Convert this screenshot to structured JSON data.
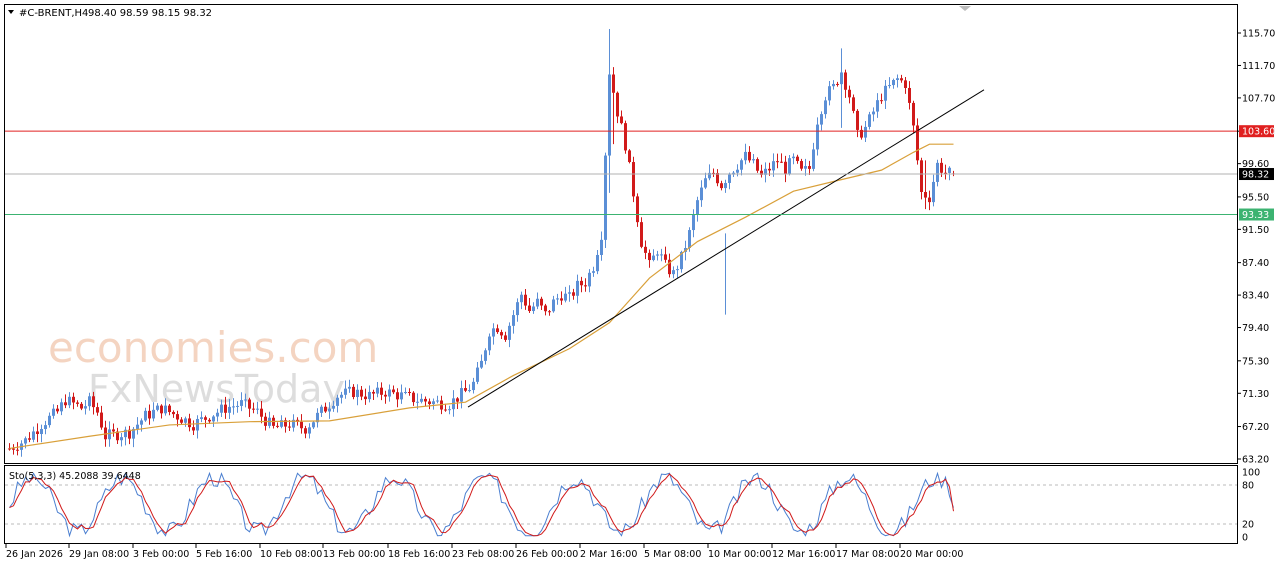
{
  "header": {
    "symbol": "#C-BRENT,H4",
    "ohlc": "98.40 98.59 98.15 98.32"
  },
  "watermark": {
    "line1": "economies.com",
    "line2": "FxNewsToday"
  },
  "colors": {
    "bull": "#5b8fd6",
    "bear": "#d11a1a",
    "ma": "#d9a03a",
    "resistance": "#e02020",
    "support": "#3cb371",
    "current": "#b0b0b0",
    "trendline": "#000000",
    "stoch_main": "#4b7fd0",
    "stoch_signal": "#d11a1a"
  },
  "chart_data": [
    {
      "type": "candlestick",
      "title": "#C-BRENT,H4",
      "timeframe": "H4",
      "current_ohlc": {
        "open": 98.4,
        "high": 98.59,
        "low": 98.15,
        "close": 98.32
      },
      "ylim": [
        63.2,
        117.5
      ],
      "y_ticks": [
        "115.70",
        "111.70",
        "107.70",
        "103.60",
        "99.60",
        "95.50",
        "91.50",
        "87.40",
        "83.40",
        "79.40",
        "75.30",
        "71.30",
        "67.20",
        "63.20"
      ],
      "x_ticks": [
        "26 Jan 2026",
        "29 Jan 08:00",
        "3 Feb 00:00",
        "5 Feb 16:00",
        "10 Feb 08:00",
        "13 Feb 00:00",
        "18 Feb 16:00",
        "23 Feb 08:00",
        "26 Feb 00:00",
        "2 Mar 16:00",
        "5 Mar 08:00",
        "10 Mar 00:00",
        "12 Mar 16:00",
        "17 Mar 08:00",
        "20 Mar 00:00"
      ],
      "price_path": [
        [
          0,
          64.5
        ],
        [
          4,
          65.5
        ],
        [
          8,
          67.5
        ],
        [
          12,
          69
        ],
        [
          14,
          70.5
        ],
        [
          16,
          70
        ],
        [
          18,
          69.5
        ],
        [
          20,
          70.2
        ],
        [
          22,
          69
        ],
        [
          24,
          66
        ],
        [
          26,
          66.2
        ],
        [
          30,
          66.5
        ],
        [
          32,
          67.5
        ],
        [
          34,
          68.5
        ],
        [
          38,
          69.5
        ],
        [
          42,
          68.5
        ],
        [
          46,
          67.5
        ],
        [
          50,
          68.5
        ],
        [
          54,
          69.5
        ],
        [
          58,
          70
        ],
        [
          62,
          69
        ],
        [
          66,
          67
        ],
        [
          70,
          67.5
        ],
        [
          74,
          67
        ],
        [
          78,
          69
        ],
        [
          82,
          71
        ],
        [
          86,
          71.5
        ],
        [
          90,
          71
        ],
        [
          94,
          71.5
        ],
        [
          98,
          71
        ],
        [
          102,
          70.5
        ],
        [
          106,
          70.2
        ],
        [
          110,
          70
        ],
        [
          112,
          70.8
        ],
        [
          114,
          71.5
        ],
        [
          116,
          72.5
        ],
        [
          118,
          75
        ],
        [
          120,
          79
        ],
        [
          122,
          79.5
        ],
        [
          124,
          78.5
        ],
        [
          126,
          81
        ],
        [
          128,
          83.5
        ],
        [
          130,
          81.5
        ],
        [
          132,
          82.5
        ],
        [
          134,
          81
        ],
        [
          136,
          82.5
        ],
        [
          138,
          83.5
        ],
        [
          140,
          83
        ],
        [
          142,
          84.5
        ],
        [
          144,
          85
        ],
        [
          146,
          87
        ],
        [
          148,
          91
        ],
        [
          150,
          111
        ],
        [
          152,
          106
        ],
        [
          154,
          102
        ],
        [
          156,
          96
        ],
        [
          158,
          90
        ],
        [
          160,
          87
        ],
        [
          162,
          89
        ],
        [
          164,
          87
        ],
        [
          166,
          86
        ],
        [
          168,
          88
        ],
        [
          170,
          91
        ],
        [
          172,
          95
        ],
        [
          174,
          97.5
        ],
        [
          176,
          98.5
        ],
        [
          178,
          97
        ],
        [
          180,
          98.5
        ],
        [
          182,
          99.5
        ],
        [
          184,
          100.5
        ],
        [
          186,
          99.5
        ],
        [
          188,
          98
        ],
        [
          190,
          99
        ],
        [
          192,
          100
        ],
        [
          194,
          99
        ],
        [
          196,
          100
        ],
        [
          198,
          98.5
        ],
        [
          200,
          99
        ],
        [
          202,
          105
        ],
        [
          204,
          108
        ],
        [
          206,
          109
        ],
        [
          208,
          111
        ],
        [
          210,
          108
        ],
        [
          212,
          103
        ],
        [
          214,
          104
        ],
        [
          216,
          106
        ],
        [
          218,
          108
        ],
        [
          220,
          109
        ],
        [
          222,
          110
        ],
        [
          224,
          109.5
        ],
        [
          226,
          104
        ],
        [
          228,
          96
        ],
        [
          230,
          95.5
        ],
        [
          232,
          99.5
        ],
        [
          234,
          98.5
        ],
        [
          236,
          98.3
        ]
      ],
      "price_levels": [
        {
          "label": "103.60",
          "value": 103.6,
          "color": "#e02020"
        },
        {
          "label": "98.32",
          "value": 98.32,
          "color": "#000000"
        },
        {
          "label": "93.33",
          "value": 93.33,
          "color": "#3cb371"
        }
      ],
      "moving_average": [
        [
          0,
          64.5
        ],
        [
          20,
          66
        ],
        [
          40,
          67.4
        ],
        [
          60,
          67.8
        ],
        [
          80,
          67.9
        ],
        [
          100,
          69.5
        ],
        [
          114,
          70.2
        ],
        [
          126,
          73.5
        ],
        [
          140,
          76.8
        ],
        [
          150,
          80
        ],
        [
          160,
          85.5
        ],
        [
          172,
          90
        ],
        [
          184,
          93
        ],
        [
          196,
          96.2
        ],
        [
          206,
          97.4
        ],
        [
          218,
          98.8
        ],
        [
          226,
          101
        ],
        [
          230,
          102
        ],
        [
          236,
          102
        ]
      ],
      "trendline": {
        "from": [
          115,
          69.6
        ],
        "to": [
          244,
          108.7
        ]
      }
    },
    {
      "type": "line",
      "title": "Sto(5,3,3) 45.2088 39.6448",
      "indicator": "Stochastic",
      "params": [
        5,
        3,
        3
      ],
      "main_value": 45.2088,
      "signal_value": 39.6448,
      "ylim": [
        0,
        100
      ],
      "levels": [
        20,
        80
      ],
      "y_ticks": [
        "100",
        "80",
        "20",
        "0"
      ]
    }
  ]
}
